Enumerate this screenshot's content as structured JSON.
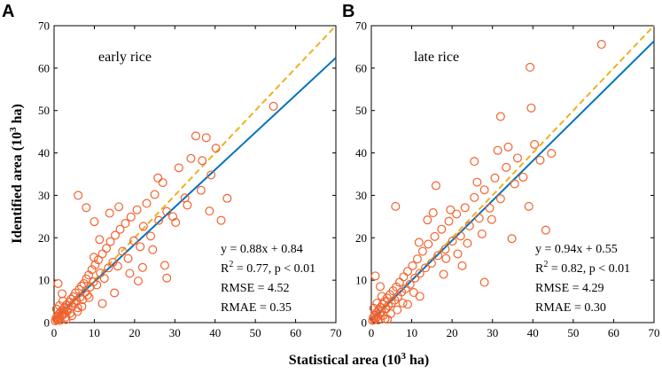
{
  "figure": {
    "xlabel": "Statistical area (10",
    "xlabel_sup": "3",
    "xlabel_tail": " ha)",
    "ylabel": "Identified area (10",
    "ylabel_sup": "3",
    "ylabel_tail": " ha)"
  },
  "chart_data": [
    {
      "type": "scatter",
      "panel": "A",
      "title": "early rice",
      "xlim": [
        0,
        70
      ],
      "ylim": [
        0,
        70
      ],
      "xticks": [
        0,
        10,
        20,
        30,
        40,
        50,
        60,
        70
      ],
      "yticks": [
        0,
        10,
        20,
        30,
        40,
        50,
        60,
        70
      ],
      "fit": {
        "slope": 0.88,
        "intercept": 0.84
      },
      "stats": {
        "equation": "y = 0.88x + 0.84",
        "r2_prefix": "R",
        "r2_sup": "2",
        "r2_rest": " = 0.77, p < 0.01",
        "rmse": "RMSE = 4.52",
        "rmae": "RMAE = 0.35"
      },
      "colors": {
        "points": "#f2622e",
        "fit_line": "#0072bd",
        "identity_line": "#edb120"
      },
      "points": [
        [
          0.3,
          0.4
        ],
        [
          0.5,
          1.1
        ],
        [
          0.7,
          0.6
        ],
        [
          0.9,
          1.5
        ],
        [
          1.0,
          0.8
        ],
        [
          1.2,
          2.0
        ],
        [
          1.4,
          1.2
        ],
        [
          1.5,
          0.5
        ],
        [
          1.7,
          2.6
        ],
        [
          1.9,
          1.6
        ],
        [
          2.1,
          3.0
        ],
        [
          2.3,
          1.9
        ],
        [
          2.5,
          2.4
        ],
        [
          2.7,
          3.6
        ],
        [
          2.9,
          1.3
        ],
        [
          3.1,
          4.2
        ],
        [
          3.3,
          2.7
        ],
        [
          3.5,
          3.4
        ],
        [
          3.8,
          4.8
        ],
        [
          4.0,
          2.2
        ],
        [
          4.2,
          5.5
        ],
        [
          4.5,
          3.9
        ],
        [
          4.8,
          6.1
        ],
        [
          5.0,
          4.6
        ],
        [
          5.3,
          7.0
        ],
        [
          5.6,
          5.2
        ],
        [
          5.9,
          3.5
        ],
        [
          6.2,
          7.8
        ],
        [
          6.5,
          6.0
        ],
        [
          6.8,
          8.6
        ],
        [
          7.1,
          5.4
        ],
        [
          7.4,
          9.2
        ],
        [
          7.7,
          7.1
        ],
        [
          8.0,
          10.3
        ],
        [
          8.3,
          6.5
        ],
        [
          8.6,
          11.2
        ],
        [
          9.0,
          8.4
        ],
        [
          9.4,
          12.5
        ],
        [
          9.8,
          9.6
        ],
        [
          10.2,
          13.6
        ],
        [
          10.6,
          8.9
        ],
        [
          11.0,
          14.8
        ],
        [
          11.5,
          11.7
        ],
        [
          12.0,
          16.2
        ],
        [
          12.5,
          10.4
        ],
        [
          13.0,
          17.5
        ],
        [
          13.5,
          12.9
        ],
        [
          14.0,
          19.1
        ],
        [
          14.6,
          14.2
        ],
        [
          15.2,
          20.6
        ],
        [
          15.8,
          13.3
        ],
        [
          16.4,
          22.0
        ],
        [
          17.0,
          16.8
        ],
        [
          17.7,
          23.4
        ],
        [
          18.4,
          15.1
        ],
        [
          19.1,
          24.9
        ],
        [
          19.8,
          19.3
        ],
        [
          20.6,
          26.6
        ],
        [
          21.4,
          17.9
        ],
        [
          22.2,
          22.7
        ],
        [
          23.0,
          28.1
        ],
        [
          24.0,
          20.4
        ],
        [
          25.0,
          30.2
        ],
        [
          26.0,
          24.1
        ],
        [
          27.0,
          33.0
        ],
        [
          28.0,
          26.2
        ],
        [
          29.5,
          25.0
        ],
        [
          31.0,
          36.5
        ],
        [
          32.5,
          29.4
        ],
        [
          34.0,
          38.7
        ],
        [
          35.2,
          44.0
        ],
        [
          36.5,
          31.2
        ],
        [
          37.8,
          43.6
        ],
        [
          39.0,
          34.8
        ],
        [
          40.2,
          41.1
        ],
        [
          41.5,
          24.1
        ],
        [
          43.0,
          29.3
        ],
        [
          54.5,
          51.0
        ],
        [
          1.0,
          9.2
        ],
        [
          2.0,
          6.8
        ],
        [
          6.0,
          30.0
        ],
        [
          8.0,
          27.1
        ],
        [
          10.0,
          23.8
        ],
        [
          27.5,
          13.5
        ],
        [
          28.0,
          10.5
        ],
        [
          22.0,
          13.0
        ],
        [
          15.0,
          7.0
        ],
        [
          12.0,
          4.5
        ],
        [
          0.6,
          3.2
        ],
        [
          1.3,
          4.0
        ],
        [
          2.2,
          5.1
        ],
        [
          3.0,
          0.7
        ],
        [
          4.4,
          1.6
        ],
        [
          5.8,
          2.6
        ],
        [
          6.9,
          3.8
        ],
        [
          8.7,
          5.9
        ],
        [
          9.9,
          15.4
        ],
        [
          11.3,
          19.6
        ],
        [
          13.8,
          25.8
        ],
        [
          16.1,
          27.3
        ],
        [
          18.8,
          11.6
        ],
        [
          20.9,
          9.8
        ],
        [
          24.5,
          17.2
        ],
        [
          25.8,
          34.1
        ],
        [
          30.2,
          23.6
        ],
        [
          33.1,
          27.7
        ],
        [
          36.8,
          38.2
        ],
        [
          38.6,
          26.3
        ]
      ]
    },
    {
      "type": "scatter",
      "panel": "B",
      "title": "late rice",
      "xlim": [
        0,
        70
      ],
      "ylim": [
        0,
        70
      ],
      "xticks": [
        0,
        10,
        20,
        30,
        40,
        50,
        60,
        70
      ],
      "yticks": [
        0,
        10,
        20,
        30,
        40,
        50,
        60,
        70
      ],
      "fit": {
        "slope": 0.94,
        "intercept": 0.55
      },
      "stats": {
        "equation": "y = 0.94x + 0.55",
        "r2_prefix": "R",
        "r2_sup": "2",
        "r2_rest": " = 0.82, p < 0.01",
        "rmse": "RMSE = 4.29",
        "rmae": "RMAE = 0.30"
      },
      "colors": {
        "points": "#f2622e",
        "fit_line": "#0072bd",
        "identity_line": "#edb120"
      },
      "points": [
        [
          0.3,
          0.5
        ],
        [
          0.5,
          1.2
        ],
        [
          0.7,
          0.7
        ],
        [
          0.9,
          1.8
        ],
        [
          1.1,
          1.0
        ],
        [
          1.3,
          2.4
        ],
        [
          1.5,
          1.4
        ],
        [
          1.7,
          0.6
        ],
        [
          1.9,
          3.1
        ],
        [
          2.1,
          2.0
        ],
        [
          2.3,
          3.6
        ],
        [
          2.5,
          2.6
        ],
        [
          2.8,
          4.3
        ],
        [
          3.0,
          1.7
        ],
        [
          3.3,
          5.0
        ],
        [
          3.6,
          3.2
        ],
        [
          3.9,
          5.8
        ],
        [
          4.2,
          4.0
        ],
        [
          4.6,
          6.6
        ],
        [
          5.0,
          4.6
        ],
        [
          5.4,
          7.5
        ],
        [
          5.8,
          5.3
        ],
        [
          6.2,
          8.4
        ],
        [
          6.6,
          6.1
        ],
        [
          7.0,
          9.5
        ],
        [
          7.5,
          7.2
        ],
        [
          8.0,
          10.8
        ],
        [
          8.5,
          8.0
        ],
        [
          9.0,
          12.1
        ],
        [
          9.6,
          9.0
        ],
        [
          10.2,
          13.4
        ],
        [
          10.8,
          10.5
        ],
        [
          11.4,
          15.0
        ],
        [
          12.0,
          11.6
        ],
        [
          12.7,
          16.8
        ],
        [
          13.4,
          12.9
        ],
        [
          14.1,
          18.5
        ],
        [
          14.9,
          14.0
        ],
        [
          15.7,
          20.3
        ],
        [
          16.5,
          15.8
        ],
        [
          17.4,
          22.0
        ],
        [
          18.3,
          17.3
        ],
        [
          19.2,
          23.9
        ],
        [
          20.1,
          19.2
        ],
        [
          21.1,
          25.6
        ],
        [
          22.1,
          20.4
        ],
        [
          23.2,
          27.1
        ],
        [
          24.3,
          22.8
        ],
        [
          25.5,
          29.5
        ],
        [
          26.7,
          24.6
        ],
        [
          28.0,
          31.3
        ],
        [
          29.3,
          27.0
        ],
        [
          30.6,
          34.1
        ],
        [
          32.0,
          29.2
        ],
        [
          33.4,
          36.6
        ],
        [
          34.8,
          19.8
        ],
        [
          36.2,
          38.8
        ],
        [
          37.6,
          34.3
        ],
        [
          39.0,
          27.4
        ],
        [
          40.4,
          42.0
        ],
        [
          41.8,
          38.3
        ],
        [
          43.2,
          21.8
        ],
        [
          44.6,
          39.9
        ],
        [
          39.3,
          60.2
        ],
        [
          39.6,
          50.6
        ],
        [
          32.0,
          48.6
        ],
        [
          57.0,
          65.6
        ],
        [
          25.5,
          38.0
        ],
        [
          18.5,
          15.1
        ],
        [
          1.0,
          11.0
        ],
        [
          2.2,
          8.5
        ],
        [
          6.0,
          27.4
        ],
        [
          16.0,
          32.3
        ],
        [
          22.5,
          13.4
        ],
        [
          28.0,
          9.5
        ],
        [
          12.0,
          6.2
        ],
        [
          9.0,
          4.3
        ],
        [
          4.0,
          0.8
        ],
        [
          0.6,
          3.4
        ],
        [
          1.4,
          4.6
        ],
        [
          2.6,
          6.2
        ],
        [
          3.4,
          0.9
        ],
        [
          4.8,
          2.1
        ],
        [
          6.4,
          3.0
        ],
        [
          7.8,
          4.6
        ],
        [
          10.5,
          7.1
        ],
        [
          11.8,
          18.9
        ],
        [
          13.9,
          24.2
        ],
        [
          15.3,
          25.9
        ],
        [
          17.9,
          11.4
        ],
        [
          19.6,
          26.6
        ],
        [
          21.4,
          16.2
        ],
        [
          23.8,
          18.7
        ],
        [
          26.2,
          33.1
        ],
        [
          27.4,
          20.9
        ],
        [
          29.8,
          24.3
        ],
        [
          31.3,
          40.6
        ],
        [
          33.9,
          41.4
        ],
        [
          35.5,
          32.7
        ]
      ]
    }
  ]
}
